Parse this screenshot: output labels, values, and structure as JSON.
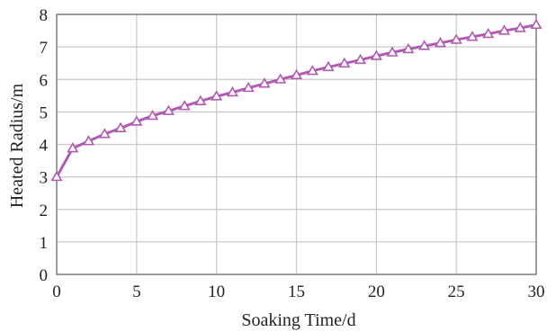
{
  "chart_data": {
    "type": "line",
    "xlabel": "Soaking Time/d",
    "ylabel": "Heated Radius/m",
    "xlim": [
      0,
      30
    ],
    "ylim": [
      0,
      8
    ],
    "xticks": [
      0,
      5,
      10,
      15,
      20,
      25,
      30
    ],
    "yticks": [
      0,
      1,
      2,
      3,
      4,
      5,
      6,
      7,
      8
    ],
    "grid": true,
    "marker": "triangle",
    "series_color": "#b15ab1",
    "series": [
      {
        "x": [
          0,
          1,
          2,
          3,
          4,
          5,
          6,
          7,
          8,
          9,
          10,
          11,
          12,
          13,
          14,
          15,
          16,
          17,
          18,
          19,
          20,
          21,
          22,
          23,
          24,
          25,
          26,
          27,
          28,
          29,
          30
        ],
        "values": [
          3.0,
          3.88,
          4.1,
          4.32,
          4.5,
          4.7,
          4.88,
          5.03,
          5.18,
          5.33,
          5.48,
          5.6,
          5.74,
          5.87,
          6.0,
          6.13,
          6.26,
          6.38,
          6.49,
          6.6,
          6.72,
          6.83,
          6.93,
          7.03,
          7.12,
          7.22,
          7.31,
          7.4,
          7.5,
          7.58,
          7.68
        ]
      }
    ]
  }
}
